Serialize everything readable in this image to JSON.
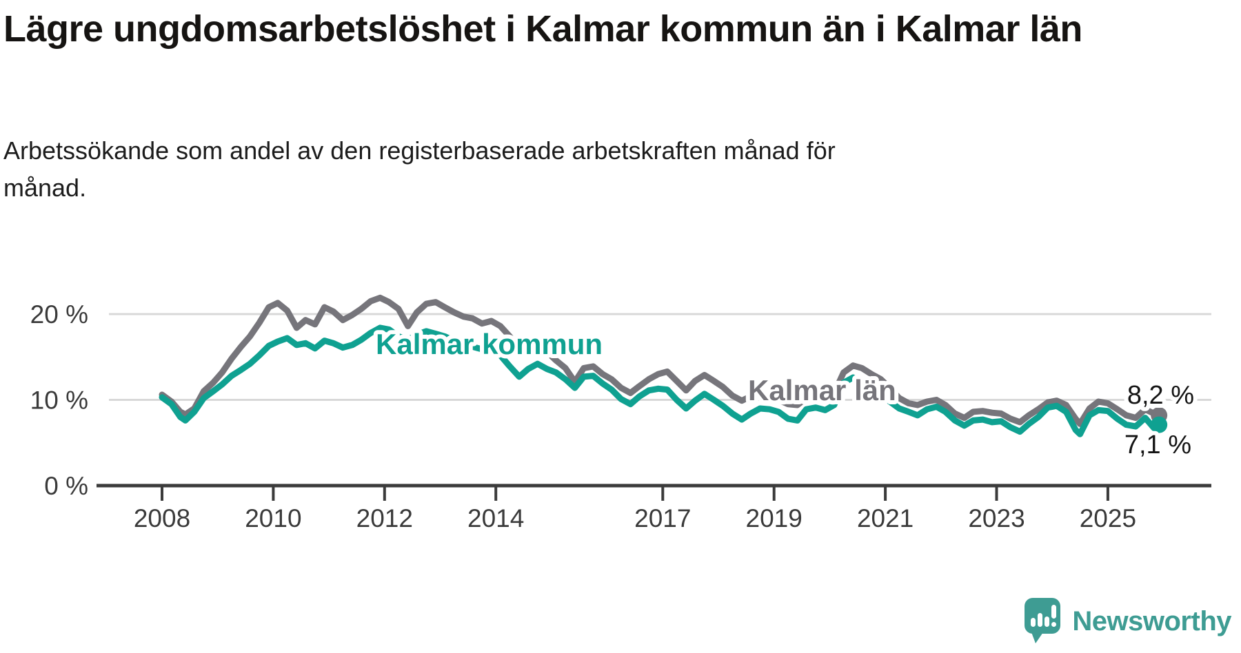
{
  "header": {
    "title": "Lägre ungdomsarbetslöshet i Kalmar kommun än i Kalmar län",
    "subtitle": "Arbetssökande som andel av den registerbaserade arbetskraften månad för månad."
  },
  "footer": {
    "brand": "Newsworthy",
    "brand_color": "#3E9C93"
  },
  "chart_data": {
    "type": "line",
    "title": "Lägre ungdomsarbetslöshet i Kalmar kommun än i Kalmar län",
    "ylabel": "Arbetssökande som andel av den registerbaserade arbetskraften",
    "ylim": [
      0,
      24
    ],
    "xlim_years": [
      2006.8,
      2026.9
    ],
    "grid": "horizontal",
    "y_axis_labels": [
      {
        "value": 0,
        "label": "0 %"
      },
      {
        "value": 10,
        "label": "10 %"
      },
      {
        "value": 20,
        "label": "20 %"
      }
    ],
    "y_gridlines": [
      10,
      20
    ],
    "x_ticks": [
      {
        "year": 2008,
        "label": "2008"
      },
      {
        "year": 2010,
        "label": "2010"
      },
      {
        "year": 2012,
        "label": "2012"
      },
      {
        "year": 2014,
        "label": "2014"
      },
      {
        "year": 2017,
        "label": "2017"
      },
      {
        "year": 2019,
        "label": "2019"
      },
      {
        "year": 2021,
        "label": "2021"
      },
      {
        "year": 2023,
        "label": "2023"
      },
      {
        "year": 2025,
        "label": "2025"
      }
    ],
    "series": [
      {
        "name": "Kalmar län",
        "color": "#76757B",
        "end_label": "8,2 %",
        "end_value": 8.2,
        "points": [
          [
            2008.0,
            10.6
          ],
          [
            2008.17,
            9.8
          ],
          [
            2008.33,
            8.6
          ],
          [
            2008.42,
            8.3
          ],
          [
            2008.58,
            9.0
          ],
          [
            2008.75,
            11.0
          ],
          [
            2008.92,
            12.0
          ],
          [
            2009.08,
            13.2
          ],
          [
            2009.25,
            14.8
          ],
          [
            2009.42,
            16.2
          ],
          [
            2009.58,
            17.4
          ],
          [
            2009.75,
            19.0
          ],
          [
            2009.92,
            20.8
          ],
          [
            2010.08,
            21.3
          ],
          [
            2010.25,
            20.4
          ],
          [
            2010.42,
            18.4
          ],
          [
            2010.58,
            19.3
          ],
          [
            2010.75,
            18.8
          ],
          [
            2010.92,
            20.8
          ],
          [
            2011.08,
            20.3
          ],
          [
            2011.25,
            19.3
          ],
          [
            2011.42,
            19.9
          ],
          [
            2011.58,
            20.6
          ],
          [
            2011.75,
            21.5
          ],
          [
            2011.92,
            21.9
          ],
          [
            2012.08,
            21.4
          ],
          [
            2012.25,
            20.6
          ],
          [
            2012.42,
            18.6
          ],
          [
            2012.58,
            20.2
          ],
          [
            2012.75,
            21.2
          ],
          [
            2012.92,
            21.4
          ],
          [
            2013.08,
            20.8
          ],
          [
            2013.25,
            20.2
          ],
          [
            2013.42,
            19.7
          ],
          [
            2013.58,
            19.5
          ],
          [
            2013.75,
            18.9
          ],
          [
            2013.92,
            19.2
          ],
          [
            2014.08,
            18.6
          ],
          [
            2014.25,
            17.4
          ],
          [
            2014.42,
            15.9
          ],
          [
            2014.58,
            16.5
          ],
          [
            2014.75,
            16.2
          ],
          [
            2014.92,
            15.6
          ],
          [
            2015.08,
            14.6
          ],
          [
            2015.25,
            13.7
          ],
          [
            2015.42,
            12.1
          ],
          [
            2015.58,
            13.7
          ],
          [
            2015.75,
            13.9
          ],
          [
            2015.92,
            13.0
          ],
          [
            2016.08,
            12.4
          ],
          [
            2016.25,
            11.4
          ],
          [
            2016.42,
            10.8
          ],
          [
            2016.58,
            11.6
          ],
          [
            2016.75,
            12.4
          ],
          [
            2016.92,
            13.0
          ],
          [
            2017.08,
            13.3
          ],
          [
            2017.25,
            12.2
          ],
          [
            2017.42,
            11.1
          ],
          [
            2017.58,
            12.2
          ],
          [
            2017.75,
            12.9
          ],
          [
            2017.92,
            12.2
          ],
          [
            2018.08,
            11.5
          ],
          [
            2018.25,
            10.5
          ],
          [
            2018.42,
            9.9
          ],
          [
            2018.58,
            10.4
          ],
          [
            2018.75,
            10.8
          ],
          [
            2018.92,
            10.4
          ],
          [
            2019.08,
            10.0
          ],
          [
            2019.25,
            9.5
          ],
          [
            2019.42,
            9.4
          ],
          [
            2019.58,
            10.2
          ],
          [
            2019.75,
            10.4
          ],
          [
            2019.92,
            10.2
          ],
          [
            2020.08,
            10.8
          ],
          [
            2020.25,
            13.2
          ],
          [
            2020.42,
            14.0
          ],
          [
            2020.58,
            13.7
          ],
          [
            2020.75,
            13.0
          ],
          [
            2020.92,
            12.4
          ],
          [
            2021.08,
            11.4
          ],
          [
            2021.25,
            10.2
          ],
          [
            2021.42,
            9.6
          ],
          [
            2021.58,
            9.4
          ],
          [
            2021.75,
            9.8
          ],
          [
            2021.92,
            10.0
          ],
          [
            2022.08,
            9.4
          ],
          [
            2022.25,
            8.4
          ],
          [
            2022.42,
            7.9
          ],
          [
            2022.58,
            8.6
          ],
          [
            2022.75,
            8.7
          ],
          [
            2022.92,
            8.5
          ],
          [
            2023.08,
            8.4
          ],
          [
            2023.25,
            7.8
          ],
          [
            2023.42,
            7.4
          ],
          [
            2023.58,
            8.2
          ],
          [
            2023.75,
            8.9
          ],
          [
            2023.92,
            9.7
          ],
          [
            2024.08,
            9.9
          ],
          [
            2024.25,
            9.4
          ],
          [
            2024.42,
            7.8
          ],
          [
            2024.5,
            7.2
          ],
          [
            2024.67,
            9.0
          ],
          [
            2024.83,
            9.8
          ],
          [
            2025.0,
            9.6
          ],
          [
            2025.17,
            8.9
          ],
          [
            2025.33,
            8.2
          ],
          [
            2025.5,
            7.9
          ],
          [
            2025.67,
            8.9
          ],
          [
            2025.83,
            8.4
          ],
          [
            2025.92,
            8.2
          ]
        ]
      },
      {
        "name": "Kalmar kommun",
        "color": "#0FA191",
        "end_label": "7,1 %",
        "end_value": 7.1,
        "points": [
          [
            2008.0,
            10.3
          ],
          [
            2008.17,
            9.5
          ],
          [
            2008.33,
            8.0
          ],
          [
            2008.42,
            7.6
          ],
          [
            2008.58,
            8.6
          ],
          [
            2008.75,
            10.2
          ],
          [
            2008.92,
            11.0
          ],
          [
            2009.08,
            11.8
          ],
          [
            2009.25,
            12.8
          ],
          [
            2009.42,
            13.5
          ],
          [
            2009.58,
            14.2
          ],
          [
            2009.75,
            15.2
          ],
          [
            2009.92,
            16.3
          ],
          [
            2010.08,
            16.8
          ],
          [
            2010.25,
            17.2
          ],
          [
            2010.42,
            16.4
          ],
          [
            2010.58,
            16.6
          ],
          [
            2010.75,
            16.0
          ],
          [
            2010.92,
            16.9
          ],
          [
            2011.08,
            16.6
          ],
          [
            2011.25,
            16.1
          ],
          [
            2011.42,
            16.4
          ],
          [
            2011.58,
            17.0
          ],
          [
            2011.75,
            17.8
          ],
          [
            2011.92,
            18.4
          ],
          [
            2012.08,
            18.2
          ],
          [
            2012.25,
            17.4
          ],
          [
            2012.42,
            17.0
          ],
          [
            2012.58,
            17.6
          ],
          [
            2012.75,
            18.0
          ],
          [
            2012.92,
            17.7
          ],
          [
            2013.08,
            17.4
          ],
          [
            2013.25,
            16.9
          ],
          [
            2013.42,
            16.5
          ],
          [
            2013.58,
            16.2
          ],
          [
            2013.75,
            15.9
          ],
          [
            2013.92,
            16.0
          ],
          [
            2014.08,
            15.2
          ],
          [
            2014.25,
            13.9
          ],
          [
            2014.42,
            12.7
          ],
          [
            2014.58,
            13.6
          ],
          [
            2014.75,
            14.2
          ],
          [
            2014.92,
            13.6
          ],
          [
            2015.08,
            13.2
          ],
          [
            2015.25,
            12.4
          ],
          [
            2015.42,
            11.4
          ],
          [
            2015.58,
            12.7
          ],
          [
            2015.75,
            12.8
          ],
          [
            2015.92,
            11.9
          ],
          [
            2016.08,
            11.2
          ],
          [
            2016.25,
            10.1
          ],
          [
            2016.42,
            9.5
          ],
          [
            2016.58,
            10.4
          ],
          [
            2016.75,
            11.1
          ],
          [
            2016.92,
            11.3
          ],
          [
            2017.08,
            11.2
          ],
          [
            2017.25,
            10.0
          ],
          [
            2017.42,
            9.0
          ],
          [
            2017.58,
            9.9
          ],
          [
            2017.75,
            10.7
          ],
          [
            2017.92,
            10.0
          ],
          [
            2018.08,
            9.3
          ],
          [
            2018.25,
            8.4
          ],
          [
            2018.42,
            7.7
          ],
          [
            2018.58,
            8.4
          ],
          [
            2018.75,
            9.0
          ],
          [
            2018.92,
            8.9
          ],
          [
            2019.08,
            8.6
          ],
          [
            2019.25,
            7.8
          ],
          [
            2019.42,
            7.6
          ],
          [
            2019.58,
            8.9
          ],
          [
            2019.75,
            9.1
          ],
          [
            2019.92,
            8.8
          ],
          [
            2020.08,
            9.4
          ],
          [
            2020.25,
            12.0
          ],
          [
            2020.42,
            12.6
          ],
          [
            2020.58,
            12.0
          ],
          [
            2020.75,
            11.2
          ],
          [
            2020.92,
            10.6
          ],
          [
            2021.08,
            9.8
          ],
          [
            2021.25,
            9.0
          ],
          [
            2021.42,
            8.6
          ],
          [
            2021.58,
            8.2
          ],
          [
            2021.75,
            8.9
          ],
          [
            2021.92,
            9.2
          ],
          [
            2022.08,
            8.6
          ],
          [
            2022.25,
            7.6
          ],
          [
            2022.42,
            7.0
          ],
          [
            2022.58,
            7.6
          ],
          [
            2022.75,
            7.7
          ],
          [
            2022.92,
            7.4
          ],
          [
            2023.08,
            7.5
          ],
          [
            2023.25,
            6.8
          ],
          [
            2023.42,
            6.3
          ],
          [
            2023.58,
            7.2
          ],
          [
            2023.75,
            8.0
          ],
          [
            2023.92,
            9.1
          ],
          [
            2024.08,
            9.3
          ],
          [
            2024.25,
            8.6
          ],
          [
            2024.42,
            6.5
          ],
          [
            2024.5,
            6.0
          ],
          [
            2024.67,
            8.2
          ],
          [
            2024.83,
            8.8
          ],
          [
            2025.0,
            8.7
          ],
          [
            2025.17,
            7.8
          ],
          [
            2025.33,
            7.1
          ],
          [
            2025.5,
            6.9
          ],
          [
            2025.67,
            7.9
          ],
          [
            2025.83,
            6.7
          ],
          [
            2025.92,
            7.1
          ]
        ]
      }
    ],
    "legend_position": "inline-labels",
    "colors": {
      "axis": "#3b3b3b",
      "gridline": "#d8d8d8",
      "tick_text": "#3a3a3a",
      "annotation_text": "#141414"
    }
  }
}
